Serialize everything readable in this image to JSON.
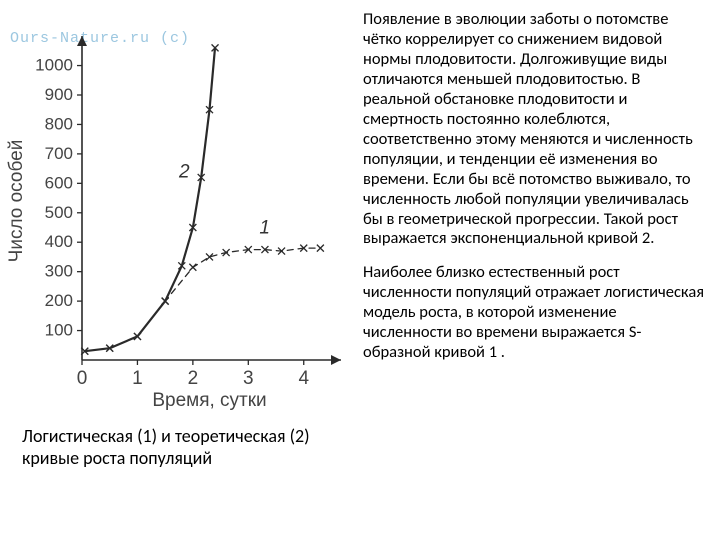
{
  "watermark": "Ours-Nature.ru (c)",
  "chart": {
    "type": "line",
    "x_label": "Время, сутки",
    "y_label": "Число особей",
    "x_ticks": [
      0,
      1,
      2,
      3,
      4
    ],
    "y_ticks": [
      100,
      200,
      300,
      400,
      500,
      600,
      700,
      800,
      900,
      1000
    ],
    "x_range": [
      0,
      4.6
    ],
    "y_range": [
      0,
      1080
    ],
    "axis_color": "#2a2a2a",
    "grid_visible": false,
    "tick_fontsize": 17,
    "label_fontsize": 19,
    "background": "#ffffff",
    "series": [
      {
        "name": "1",
        "label": "1",
        "label_pos": {
          "x": 3.2,
          "y": 430
        },
        "style": "dashed",
        "color": "#2a2a2a",
        "line_width": 1.3,
        "marker": "x",
        "marker_size": 7,
        "points": [
          {
            "x": 0.05,
            "y": 30
          },
          {
            "x": 0.5,
            "y": 40
          },
          {
            "x": 1.0,
            "y": 80
          },
          {
            "x": 1.5,
            "y": 200
          },
          {
            "x": 2.0,
            "y": 315
          },
          {
            "x": 2.3,
            "y": 350
          },
          {
            "x": 2.6,
            "y": 365
          },
          {
            "x": 3.0,
            "y": 375
          },
          {
            "x": 3.3,
            "y": 375
          },
          {
            "x": 3.6,
            "y": 370
          },
          {
            "x": 4.0,
            "y": 380
          },
          {
            "x": 4.3,
            "y": 380
          }
        ]
      },
      {
        "name": "2",
        "label": "2",
        "label_pos": {
          "x": 1.75,
          "y": 620
        },
        "style": "solid",
        "color": "#2a2a2a",
        "line_width": 2.2,
        "marker": "x",
        "marker_size": 7,
        "points": [
          {
            "x": 0.05,
            "y": 30
          },
          {
            "x": 0.5,
            "y": 40
          },
          {
            "x": 1.0,
            "y": 80
          },
          {
            "x": 1.5,
            "y": 200
          },
          {
            "x": 1.8,
            "y": 320
          },
          {
            "x": 2.0,
            "y": 450
          },
          {
            "x": 2.15,
            "y": 620
          },
          {
            "x": 2.3,
            "y": 850
          },
          {
            "x": 2.4,
            "y": 1060
          }
        ]
      }
    ]
  },
  "caption": "Логистическая (1) и теоретическая (2) кривые роста популяций",
  "paragraph1": "Появление в эволюции заботы о потомстве чётко коррелирует со снижением видовой нормы плодовитости. Долгоживущие виды отличаются меньшей плодовитостью. В реальной обстановке  плодовитости и  смертность постоянно колеблются, соответственно этому меняются и численность популяции, и тенденции её изменения во времени. Если бы всё потомство выживало, то численность любой популяции увеличивалась бы в геометрической прогрессии. Такой рост выражается экспоненциальной кривой 2.",
  "paragraph2": "Наиболее близко естественный рост численности популяций отражает логистическая модель роста, в которой изменение численности во времени выражается S-образной кривой 1 ."
}
